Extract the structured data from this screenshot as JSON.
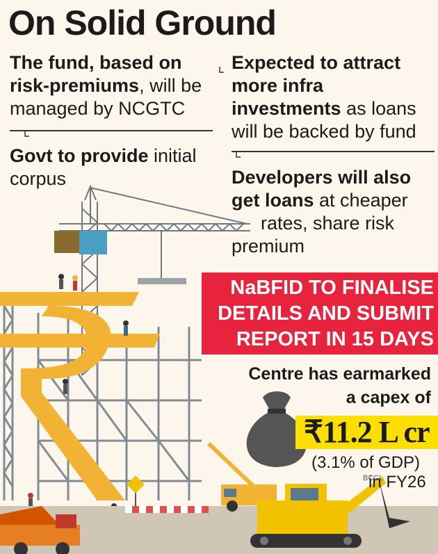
{
  "title": "On Solid Ground",
  "left_col": {
    "p1": {
      "line1_bold": "The fund, based on",
      "line2_bold": "risk-premiums",
      "line2_rest": ", will be",
      "line3": "managed by NCGTC"
    },
    "p2": {
      "line1_bold": "Govt to provide",
      "line1_rest": " initial",
      "line2": "corpus"
    }
  },
  "right_col": {
    "p1": {
      "line1_bold": "Expected to attract",
      "line2_bold": "more infra",
      "line3_bold": "investments",
      "line3_rest": " as loans",
      "line4": "will be backed by fund"
    },
    "p2": {
      "line1_bold": "Developers will also",
      "line2_bold": "get loans",
      "line2_rest": " at cheaper",
      "line3": "rates, share risk",
      "line4": "premium"
    }
  },
  "banner": {
    "line1": "NaBFID TO FINALISE",
    "line2": "DETAILS AND SUBMIT",
    "line3": "REPORT IN 15 DAYS"
  },
  "capex": {
    "line1": "Centre has earmarked",
    "line2": "a capex of",
    "amount": "₹11.2 L cr",
    "gdp": "(3.1% of GDP)",
    "year": "in FY26"
  },
  "watermark": "BCCL",
  "colors": {
    "banner_red": "#e8233d",
    "amount_yellow": "#fbdf00",
    "rupee_orange": "#f2b233",
    "scaffold_gray": "#7f8c93",
    "crane_blue": "#3a6e88"
  }
}
